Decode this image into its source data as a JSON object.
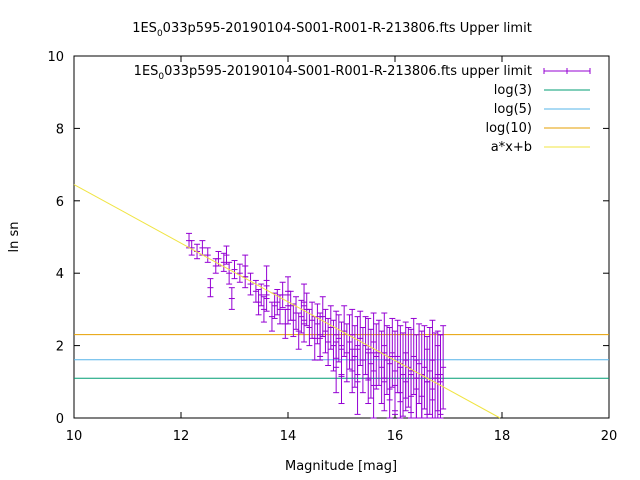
{
  "chart_data": {
    "type": "scatter",
    "title": {
      "main": "1ES",
      "sub": "0",
      "rest": "033p595-20190104-S001-R001-R-213806.fts Upper limit"
    },
    "xlabel": "Magnitude [mag]",
    "ylabel": "ln sn",
    "xlim": [
      10,
      20
    ],
    "ylim": [
      0,
      10
    ],
    "xticks": [
      "10",
      "12",
      "14",
      "16",
      "18",
      "20"
    ],
    "yticks": [
      "0",
      "2",
      "4",
      "6",
      "8",
      "10"
    ],
    "grid": false,
    "legend_position": "top-right",
    "legend": [
      {
        "label_main": "1ES",
        "label_sub": "0",
        "label_rest": "033p595-20190104-S001-R001-R-213806.fts upper limit",
        "color": "#9400d3",
        "kind": "errorbar"
      },
      {
        "label": "log(3)",
        "color": "#009e73",
        "kind": "line"
      },
      {
        "label": "log(5)",
        "color": "#56b4e9",
        "kind": "line"
      },
      {
        "label": "log(10)",
        "color": "#e69f00",
        "kind": "line"
      },
      {
        "label": "a*x+b",
        "color": "#f0e442",
        "kind": "line"
      }
    ],
    "hlines": [
      {
        "name": "log(3)",
        "y": 1.0986,
        "color": "#009e73"
      },
      {
        "name": "log(5)",
        "y": 1.6094,
        "color": "#56b4e9"
      },
      {
        "name": "log(10)",
        "y": 2.3026,
        "color": "#e69f00"
      }
    ],
    "fit_line": {
      "name": "a*x+b",
      "a": -0.81,
      "b": 14.55,
      "color": "#f0e442"
    },
    "series": [
      {
        "name": "upper limit",
        "color": "#9400d3",
        "x": [
          12.15,
          12.2,
          12.3,
          12.4,
          12.5,
          12.55,
          12.65,
          12.7,
          12.8,
          12.85,
          12.95,
          13.0,
          13.1,
          13.2,
          13.3,
          13.4,
          13.45,
          13.5,
          13.55,
          13.6,
          13.7,
          13.75,
          13.8,
          13.85,
          13.9,
          13.95,
          14.0,
          14.05,
          14.1,
          14.15,
          14.2,
          14.25,
          14.3,
          14.35,
          14.4,
          14.45,
          14.5,
          14.55,
          14.6,
          14.65,
          14.7,
          14.75,
          14.8,
          14.85,
          14.9,
          14.95,
          15.0,
          15.05,
          15.1,
          15.15,
          15.2,
          15.25,
          15.3,
          15.35,
          15.4,
          15.45,
          15.5,
          15.55,
          15.6,
          15.65,
          15.7,
          15.75,
          15.8,
          15.85,
          15.9,
          15.95,
          16.0,
          16.05,
          16.1,
          16.15,
          16.2,
          16.25,
          16.3,
          16.35,
          16.4,
          16.45,
          16.5,
          16.55,
          16.6,
          16.65,
          16.7,
          16.75,
          16.8,
          16.85,
          16.9,
          15.0,
          15.3,
          15.6,
          15.9,
          16.1,
          16.3,
          16.5,
          16.7,
          16.85,
          14.6,
          14.9,
          15.2,
          15.5,
          15.8,
          16.0,
          16.2,
          16.4,
          16.6,
          16.8,
          13.6,
          14.0,
          14.3,
          12.9,
          13.2
        ],
        "y": [
          4.9,
          4.7,
          4.6,
          4.7,
          4.5,
          3.6,
          4.2,
          4.4,
          4.3,
          4.5,
          3.3,
          4.1,
          4.0,
          3.9,
          3.7,
          3.5,
          3.2,
          3.4,
          3.0,
          3.3,
          2.8,
          3.1,
          3.2,
          3.0,
          3.4,
          2.6,
          3.0,
          3.1,
          2.7,
          2.9,
          2.4,
          2.8,
          2.6,
          3.0,
          2.5,
          2.7,
          2.2,
          2.6,
          2.3,
          2.8,
          2.4,
          2.1,
          2.5,
          2.0,
          2.3,
          2.2,
          1.9,
          2.4,
          1.8,
          2.1,
          2.3,
          1.7,
          2.0,
          2.2,
          1.6,
          2.0,
          1.9,
          1.5,
          2.1,
          1.7,
          1.8,
          1.4,
          2.0,
          1.6,
          1.5,
          1.8,
          1.3,
          1.7,
          1.5,
          1.2,
          1.6,
          1.4,
          1.3,
          1.7,
          1.1,
          1.5,
          1.2,
          1.4,
          1.0,
          1.3,
          1.6,
          1.1,
          1.2,
          1.0,
          1.4,
          1.2,
          1.0,
          0.9,
          0.8,
          0.7,
          0.6,
          0.6,
          0.8,
          1.2,
          2.2,
          1.4,
          1.3,
          1.1,
          1.0,
          0.9,
          1.0,
          0.8,
          1.0,
          1.1,
          3.8,
          3.5,
          3.2,
          4.0,
          4.2
        ],
        "err": [
          0.2,
          0.2,
          0.2,
          0.2,
          0.2,
          0.25,
          0.2,
          0.2,
          0.25,
          0.25,
          0.3,
          0.25,
          0.25,
          0.3,
          0.3,
          0.3,
          0.35,
          0.3,
          0.35,
          0.35,
          0.4,
          0.35,
          0.35,
          0.4,
          0.35,
          0.4,
          0.4,
          0.4,
          0.45,
          0.45,
          0.5,
          0.45,
          0.5,
          0.45,
          0.5,
          0.5,
          0.6,
          0.55,
          0.6,
          0.55,
          0.6,
          0.65,
          0.6,
          0.7,
          0.65,
          0.65,
          0.75,
          0.7,
          0.8,
          0.75,
          0.7,
          0.85,
          0.8,
          0.75,
          0.9,
          0.8,
          0.85,
          0.95,
          0.8,
          0.9,
          0.9,
          1.0,
          0.9,
          0.95,
          1.0,
          0.95,
          1.1,
          1.0,
          1.05,
          1.15,
          1.05,
          1.1,
          1.15,
          1.05,
          1.2,
          1.1,
          1.2,
          1.15,
          1.25,
          1.2,
          1.1,
          1.25,
          1.2,
          1.3,
          1.15,
          0.8,
          0.9,
          0.9,
          0.9,
          0.7,
          0.6,
          0.6,
          0.8,
          1.1,
          0.6,
          0.7,
          0.6,
          0.7,
          0.8,
          0.8,
          0.8,
          0.8,
          0.9,
          0.9,
          0.4,
          0.4,
          0.5,
          0.3,
          0.3
        ]
      }
    ]
  }
}
